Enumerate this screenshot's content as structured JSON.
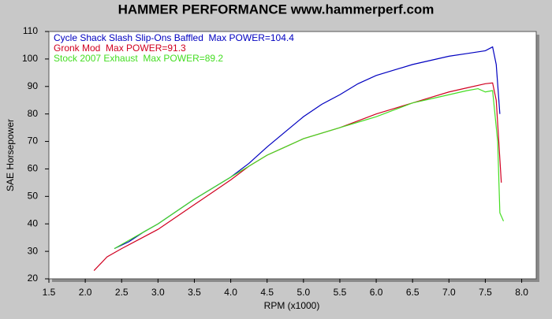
{
  "chart_data": {
    "type": "line",
    "title": "HAMMER PERFORMANCE www.hammerperf.com",
    "x_label": "RPM (x1000)",
    "y_label": "SAE Horsepower",
    "xlim": [
      1.5,
      8.2
    ],
    "ylim": [
      20,
      110
    ],
    "xticks": [
      1.5,
      {
        "value": 2,
        "label": "2.0"
      },
      2.5,
      {
        "value": 3,
        "label": "3.0"
      },
      3.5,
      {
        "value": 4,
        "label": "4.0"
      },
      4.5,
      {
        "value": 5,
        "label": "5.0"
      },
      5.5,
      {
        "value": 6,
        "label": "6.0"
      },
      6.5,
      {
        "value": 7,
        "label": "7.0"
      },
      7.5,
      {
        "value": 8,
        "label": "8.0"
      }
    ],
    "yticks": [
      20,
      30,
      40,
      50,
      60,
      70,
      80,
      90,
      100,
      110
    ],
    "grid": false,
    "series": [
      {
        "name": "Cycle Shack Slash Slip-Ons Baffled  Max POWER=104.4",
        "color": "#0000c0",
        "x": [
          2.4,
          2.6,
          2.8,
          3.0,
          3.25,
          3.5,
          3.75,
          4.0,
          4.25,
          4.5,
          4.75,
          5.0,
          5.25,
          5.5,
          5.75,
          6.0,
          6.25,
          6.5,
          6.75,
          7.0,
          7.25,
          7.5,
          7.6,
          7.65,
          7.7
        ],
        "values": [
          31,
          33.5,
          37,
          40,
          44.5,
          49,
          53,
          57,
          62,
          68,
          73.5,
          79,
          83.5,
          87,
          91,
          94,
          96,
          98,
          99.5,
          101,
          102,
          103,
          104.4,
          98,
          80
        ]
      },
      {
        "name": "Gronk Mod  Max POWER=91.3",
        "color": "#d00020",
        "x": [
          2.12,
          2.3,
          2.5,
          2.75,
          3.0,
          3.25,
          3.5,
          3.75,
          4.0,
          4.25,
          4.5,
          4.75,
          5.0,
          5.25,
          5.5,
          5.75,
          6.0,
          6.25,
          6.5,
          6.75,
          7.0,
          7.25,
          7.5,
          7.6,
          7.65,
          7.72
        ],
        "values": [
          23,
          28,
          31,
          34.5,
          38,
          42.5,
          47,
          51.5,
          56,
          61,
          65,
          68,
          71,
          73,
          75,
          77.5,
          80,
          82,
          84,
          86,
          88,
          89.5,
          91,
          91.3,
          85,
          55
        ]
      },
      {
        "name": "Stock 2007 Exhaust  Max POWER=89.2",
        "color": "#44dd22",
        "x": [
          2.4,
          2.6,
          2.8,
          3.0,
          3.25,
          3.5,
          3.75,
          4.0,
          4.25,
          4.5,
          4.75,
          5.0,
          5.25,
          5.5,
          5.75,
          6.0,
          6.25,
          6.5,
          6.75,
          7.0,
          7.25,
          7.4,
          7.5,
          7.6,
          7.67,
          7.7,
          7.75
        ],
        "values": [
          31,
          34,
          37,
          40,
          44.5,
          49,
          53,
          57,
          61,
          65,
          68,
          71,
          73,
          75,
          77,
          79,
          81.5,
          84,
          85.5,
          87,
          88.5,
          89.2,
          88,
          88.5,
          70,
          44,
          41
        ]
      }
    ]
  }
}
